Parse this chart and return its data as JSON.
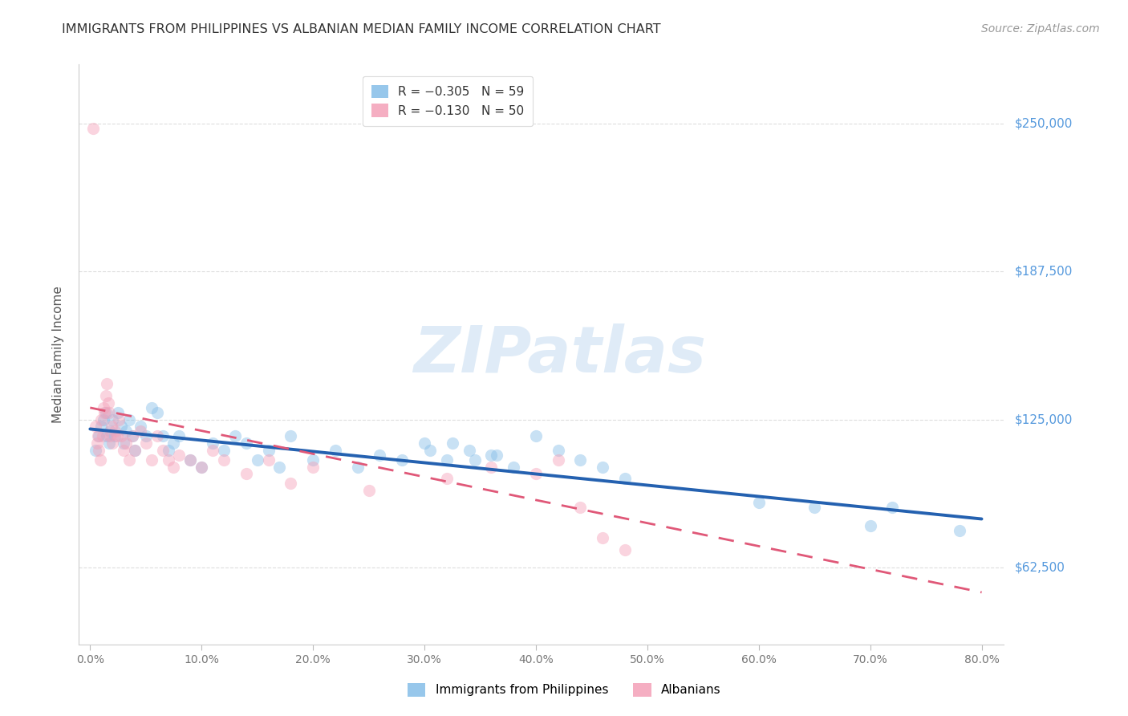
{
  "title": "IMMIGRANTS FROM PHILIPPINES VS ALBANIAN MEDIAN FAMILY INCOME CORRELATION CHART",
  "source": "Source: ZipAtlas.com",
  "ylabel": "Median Family Income",
  "xlabel_ticks": [
    "0.0%",
    "10.0%",
    "20.0%",
    "30.0%",
    "40.0%",
    "50.0%",
    "60.0%",
    "70.0%",
    "80.0%"
  ],
  "xlabel_vals": [
    0,
    10,
    20,
    30,
    40,
    50,
    60,
    70,
    80
  ],
  "ytick_vals": [
    62500,
    125000,
    187500,
    250000
  ],
  "ytick_labels": [
    "$62,500",
    "$125,000",
    "$187,500",
    "$250,000"
  ],
  "xlim": [
    -1.0,
    82.0
  ],
  "ylim": [
    30000,
    275000
  ],
  "blue_color": "#85BDE8",
  "pink_color": "#F4A0B8",
  "blue_line_color": "#2461B0",
  "pink_line_color": "#E05878",
  "right_label_color": "#5599DD",
  "grid_color": "#CCCCCC",
  "background_color": "#FFFFFF",
  "R_blue": "−0.305",
  "N_blue": "59",
  "R_pink": "−0.130",
  "N_pink": "50",
  "legend_label_blue": "Immigrants from Philippines",
  "legend_label_pink": "Albanians",
  "watermark": "ZIPatlas",
  "title_fontsize": 11.5,
  "source_fontsize": 10,
  "axis_label_fontsize": 11,
  "tick_fontsize": 10,
  "legend_fontsize": 11,
  "watermark_fontsize": 58,
  "dot_size": 120,
  "dot_alpha": 0.45,
  "blue_line_x0": 0,
  "blue_line_x1": 80,
  "blue_line_y0": 121000,
  "blue_line_y1": 83000,
  "pink_line_x0": 0,
  "pink_line_x1": 80,
  "pink_line_y0": 130000,
  "pink_line_y1": 52000,
  "blue_scatter_x": [
    0.5,
    0.8,
    1.0,
    1.2,
    1.4,
    1.5,
    1.7,
    1.8,
    2.0,
    2.2,
    2.5,
    2.8,
    3.0,
    3.2,
    3.5,
    3.8,
    4.0,
    4.5,
    5.0,
    5.5,
    6.0,
    6.5,
    7.0,
    7.5,
    8.0,
    9.0,
    10.0,
    11.0,
    12.0,
    13.0,
    14.0,
    15.0,
    16.0,
    17.0,
    18.0,
    20.0,
    22.0,
    24.0,
    26.0,
    28.0,
    30.0,
    32.0,
    34.0,
    36.0,
    38.0,
    40.0,
    42.0,
    44.0,
    46.0,
    48.0,
    30.5,
    32.5,
    34.5,
    36.5,
    60.0,
    65.0,
    70.0,
    72.0,
    78.0
  ],
  "blue_scatter_y": [
    112000,
    118000,
    122000,
    125000,
    128000,
    118000,
    115000,
    120000,
    125000,
    118000,
    128000,
    122000,
    115000,
    120000,
    125000,
    118000,
    112000,
    122000,
    118000,
    130000,
    128000,
    118000,
    112000,
    115000,
    118000,
    108000,
    105000,
    115000,
    112000,
    118000,
    115000,
    108000,
    112000,
    105000,
    118000,
    108000,
    112000,
    105000,
    110000,
    108000,
    115000,
    108000,
    112000,
    110000,
    105000,
    118000,
    112000,
    108000,
    105000,
    100000,
    112000,
    115000,
    108000,
    110000,
    90000,
    88000,
    80000,
    88000,
    78000
  ],
  "pink_scatter_x": [
    0.3,
    0.5,
    0.6,
    0.7,
    0.8,
    0.9,
    1.0,
    1.1,
    1.2,
    1.3,
    1.4,
    1.5,
    1.6,
    1.7,
    1.8,
    1.9,
    2.0,
    2.2,
    2.4,
    2.6,
    2.8,
    3.0,
    3.2,
    3.5,
    3.8,
    4.0,
    4.5,
    5.0,
    5.5,
    6.0,
    6.5,
    7.0,
    7.5,
    8.0,
    9.0,
    10.0,
    11.0,
    12.0,
    14.0,
    16.0,
    18.0,
    20.0,
    25.0,
    32.0,
    36.0,
    40.0,
    42.0,
    44.0,
    46.0,
    48.0
  ],
  "pink_scatter_y": [
    248000,
    122000,
    115000,
    118000,
    112000,
    108000,
    125000,
    118000,
    130000,
    128000,
    135000,
    140000,
    132000,
    128000,
    118000,
    122000,
    115000,
    120000,
    118000,
    125000,
    118000,
    112000,
    115000,
    108000,
    118000,
    112000,
    120000,
    115000,
    108000,
    118000,
    112000,
    108000,
    105000,
    110000,
    108000,
    105000,
    112000,
    108000,
    102000,
    108000,
    98000,
    105000,
    95000,
    100000,
    105000,
    102000,
    108000,
    88000,
    75000,
    70000
  ]
}
